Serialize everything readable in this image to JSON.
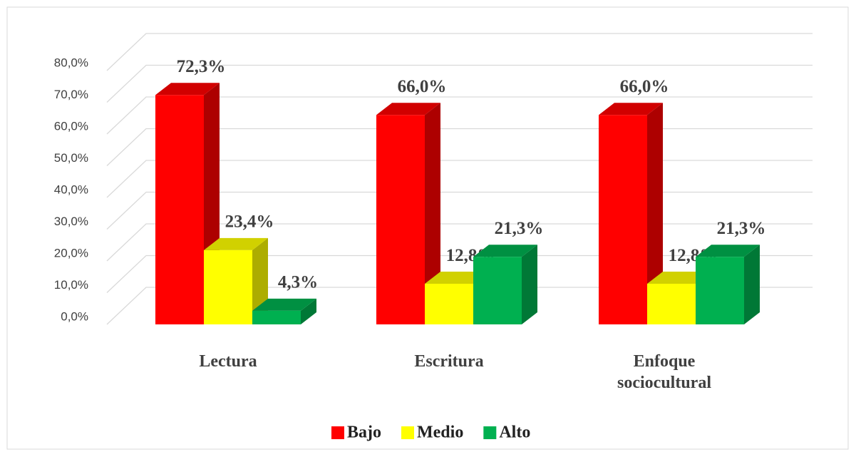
{
  "chart_data": {
    "type": "bar3d",
    "categories": [
      "Lectura",
      "Escritura",
      "Enfoque sociocultural"
    ],
    "series": [
      {
        "name": "Bajo",
        "color": "#ff0000",
        "values": [
          72.3,
          66.0,
          66.0
        ],
        "value_labels": [
          "72,3%",
          "66,0%",
          "66,0%"
        ]
      },
      {
        "name": "Medio",
        "color": "#ffff00",
        "values": [
          23.4,
          12.8,
          12.8
        ],
        "value_labels": [
          "23,4%",
          "12,8%",
          "12,8%"
        ]
      },
      {
        "name": "Alto",
        "color": "#00b050",
        "values": [
          4.3,
          21.3,
          21.3
        ],
        "value_labels": [
          "4,3%",
          "21,3%",
          "21,3%"
        ]
      }
    ],
    "ylim": [
      0,
      80
    ],
    "yticks": [
      {
        "value": 0,
        "label": "0,0%"
      },
      {
        "value": 10,
        "label": "10,0%"
      },
      {
        "value": 20,
        "label": "20,0%"
      },
      {
        "value": 30,
        "label": "30,0%"
      },
      {
        "value": 40,
        "label": "40,0%"
      },
      {
        "value": 50,
        "label": "50,0%"
      },
      {
        "value": 60,
        "label": "60,0%"
      },
      {
        "value": 70,
        "label": "70,0%"
      },
      {
        "value": 80,
        "label": "80,0%"
      }
    ],
    "grid": true,
    "legend": "bottom"
  }
}
